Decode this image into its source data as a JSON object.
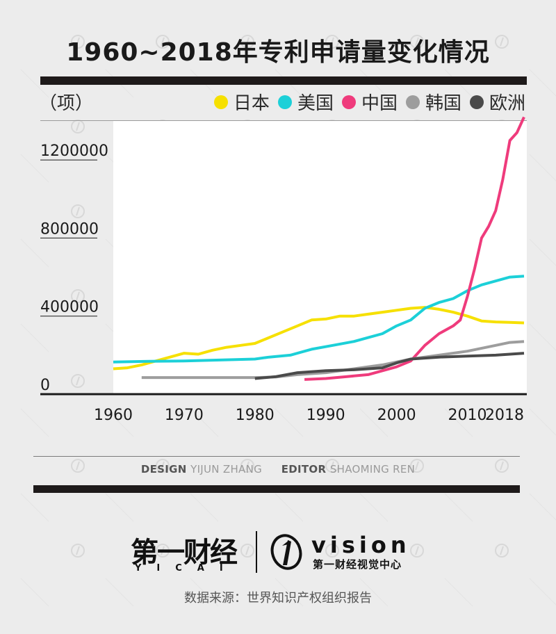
{
  "title": "1960~2018年专利申请量变化情况",
  "unit_label": "（项）",
  "colors": {
    "japan": "#f6e000",
    "usa": "#1cd0d8",
    "china": "#ef3b7c",
    "korea": "#9d9d9d",
    "europe": "#4a4a4a",
    "background": "#ececec",
    "rule": "#1e1a1a"
  },
  "legend": [
    "日本",
    "美国",
    "中国",
    "韩国",
    "欧洲"
  ],
  "credits": {
    "design_key": "DESIGN",
    "design_val": "YIJUN ZHANG",
    "editor_key": "EDITOR",
    "editor_val": "SHAOMING REN"
  },
  "logo": {
    "cn": "第一财经",
    "cn_sub": "YICAI",
    "vision": "vision",
    "vision_sub": "第一财经视觉中心"
  },
  "source": "数据来源：世界知识产权组织报告",
  "chart_data": {
    "type": "line",
    "title": "1960~2018年专利申请量变化情况",
    "ylabel": "（项）",
    "xlim": [
      1960,
      2018
    ],
    "ylim": [
      0,
      1400000
    ],
    "x_ticks": [
      1960,
      1970,
      1980,
      1990,
      2000,
      2010,
      2018
    ],
    "y_ticks": [
      0,
      400000,
      800000,
      1200000
    ],
    "legend_position": "top-right",
    "grid": false,
    "series": [
      {
        "name": "日本",
        "key": "japan",
        "points": [
          [
            1960,
            130000
          ],
          [
            1962,
            135000
          ],
          [
            1964,
            150000
          ],
          [
            1966,
            170000
          ],
          [
            1968,
            190000
          ],
          [
            1970,
            210000
          ],
          [
            1972,
            205000
          ],
          [
            1974,
            225000
          ],
          [
            1976,
            240000
          ],
          [
            1978,
            250000
          ],
          [
            1980,
            260000
          ],
          [
            1982,
            290000
          ],
          [
            1984,
            320000
          ],
          [
            1986,
            350000
          ],
          [
            1988,
            380000
          ],
          [
            1990,
            385000
          ],
          [
            1992,
            400000
          ],
          [
            1994,
            400000
          ],
          [
            1996,
            410000
          ],
          [
            1998,
            420000
          ],
          [
            2000,
            430000
          ],
          [
            2002,
            440000
          ],
          [
            2004,
            445000
          ],
          [
            2006,
            435000
          ],
          [
            2008,
            420000
          ],
          [
            2010,
            400000
          ],
          [
            2012,
            375000
          ],
          [
            2014,
            370000
          ],
          [
            2016,
            368000
          ],
          [
            2018,
            365000
          ]
        ]
      },
      {
        "name": "美国",
        "key": "usa",
        "points": [
          [
            1960,
            165000
          ],
          [
            1965,
            168000
          ],
          [
            1970,
            170000
          ],
          [
            1975,
            175000
          ],
          [
            1980,
            180000
          ],
          [
            1982,
            190000
          ],
          [
            1985,
            200000
          ],
          [
            1988,
            230000
          ],
          [
            1991,
            250000
          ],
          [
            1994,
            270000
          ],
          [
            1996,
            290000
          ],
          [
            1998,
            310000
          ],
          [
            2000,
            350000
          ],
          [
            2002,
            380000
          ],
          [
            2004,
            440000
          ],
          [
            2006,
            470000
          ],
          [
            2008,
            490000
          ],
          [
            2010,
            530000
          ],
          [
            2012,
            560000
          ],
          [
            2014,
            580000
          ],
          [
            2016,
            600000
          ],
          [
            2018,
            605000
          ]
        ]
      },
      {
        "name": "中国",
        "key": "china",
        "points": [
          [
            1987,
            75000
          ],
          [
            1990,
            80000
          ],
          [
            1993,
            90000
          ],
          [
            1996,
            100000
          ],
          [
            1998,
            120000
          ],
          [
            2000,
            140000
          ],
          [
            2002,
            170000
          ],
          [
            2004,
            250000
          ],
          [
            2006,
            310000
          ],
          [
            2008,
            350000
          ],
          [
            2009,
            380000
          ],
          [
            2010,
            500000
          ],
          [
            2011,
            640000
          ],
          [
            2012,
            800000
          ],
          [
            2013,
            860000
          ],
          [
            2014,
            940000
          ],
          [
            2015,
            1100000
          ],
          [
            2016,
            1300000
          ],
          [
            2017,
            1340000
          ],
          [
            2018,
            1420000
          ]
        ]
      },
      {
        "name": "韩国",
        "key": "korea",
        "points": [
          [
            1964,
            85000
          ],
          [
            1970,
            85000
          ],
          [
            1975,
            85000
          ],
          [
            1980,
            85000
          ],
          [
            1983,
            88000
          ],
          [
            1986,
            100000
          ],
          [
            1990,
            110000
          ],
          [
            1994,
            130000
          ],
          [
            1998,
            150000
          ],
          [
            2002,
            180000
          ],
          [
            2006,
            200000
          ],
          [
            2010,
            220000
          ],
          [
            2014,
            250000
          ],
          [
            2016,
            265000
          ],
          [
            2018,
            270000
          ]
        ]
      },
      {
        "name": "欧洲",
        "key": "europe",
        "points": [
          [
            1980,
            80000
          ],
          [
            1983,
            90000
          ],
          [
            1986,
            110000
          ],
          [
            1990,
            120000
          ],
          [
            1994,
            125000
          ],
          [
            1998,
            135000
          ],
          [
            2000,
            160000
          ],
          [
            2002,
            180000
          ],
          [
            2006,
            190000
          ],
          [
            2010,
            195000
          ],
          [
            2014,
            200000
          ],
          [
            2016,
            205000
          ],
          [
            2018,
            210000
          ]
        ]
      }
    ]
  }
}
